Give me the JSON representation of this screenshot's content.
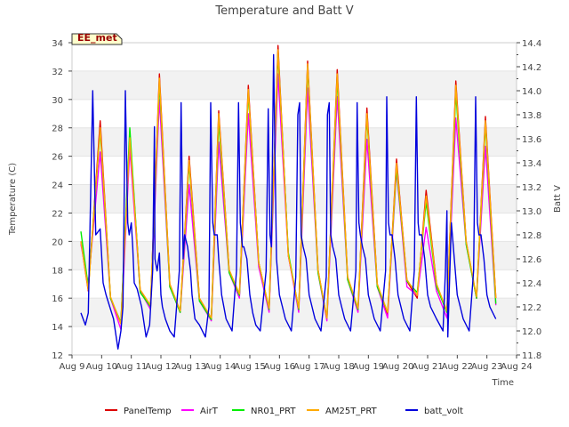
{
  "chart_data": {
    "type": "line",
    "title": "Temperature and Batt V",
    "xlabel": "Time",
    "ylabel": "Temperature (C)",
    "y2label": "Batt V",
    "station_label": "EE_met",
    "xlim": [
      9,
      24
    ],
    "ylim": [
      12,
      34
    ],
    "y2lim": [
      11.8,
      14.4
    ],
    "x_ticks": [
      "Aug 9",
      "Aug 10",
      "Aug 11",
      "Aug 12",
      "Aug 13",
      "Aug 14",
      "Aug 15",
      "Aug 16",
      "Aug 17",
      "Aug 18",
      "Aug 19",
      "Aug 20",
      "Aug 21",
      "Aug 22",
      "Aug 23",
      "Aug 24"
    ],
    "y_ticks": [
      12,
      14,
      16,
      18,
      20,
      22,
      24,
      26,
      28,
      30,
      32,
      34
    ],
    "y2_ticks": [
      11.8,
      12.0,
      12.2,
      12.4,
      12.6,
      12.8,
      13.0,
      13.2,
      13.4,
      13.6,
      13.8,
      14.0,
      14.2,
      14.4
    ],
    "background_bands": true,
    "legend_placement": "bottom",
    "series": [
      {
        "name": "PanelTemp",
        "color": "#dd0000",
        "axis": "left",
        "x": [
          9.3,
          9.55,
          9.95,
          10.3,
          10.65,
          10.95,
          11.3,
          11.65,
          11.95,
          12.3,
          12.65,
          12.95,
          13.3,
          13.7,
          13.95,
          14.3,
          14.65,
          14.95,
          15.3,
          15.65,
          15.95,
          16.3,
          16.65,
          16.95,
          17.3,
          17.6,
          17.95,
          18.3,
          18.65,
          18.95,
          19.3,
          19.65,
          19.95,
          20.3,
          20.65,
          20.95,
          21.3,
          21.65,
          21.95,
          22.3,
          22.65,
          22.95,
          23.3
        ],
        "y": [
          20,
          16.5,
          28.5,
          16,
          14.2,
          27.5,
          16.5,
          15.5,
          31.8,
          17,
          15,
          26,
          16,
          14.5,
          29.2,
          18,
          16.2,
          31,
          18.5,
          15.2,
          33.8,
          19,
          15.2,
          32.7,
          18,
          14.5,
          32.1,
          17.5,
          15.2,
          29.4,
          17,
          14.8,
          25.8,
          17.2,
          16,
          23.6,
          17,
          15,
          31.3,
          20,
          16,
          28.8,
          16
        ]
      },
      {
        "name": "AirT",
        "color": "#ff00ff",
        "axis": "left",
        "x": [
          9.3,
          9.55,
          9.95,
          10.3,
          10.65,
          10.95,
          11.3,
          11.65,
          11.95,
          12.3,
          12.65,
          12.95,
          13.3,
          13.7,
          13.95,
          14.3,
          14.65,
          14.95,
          15.3,
          15.65,
          15.95,
          16.3,
          16.65,
          16.95,
          17.3,
          17.6,
          17.95,
          18.3,
          18.65,
          18.95,
          19.3,
          19.65,
          19.95,
          20.3,
          20.65,
          20.95,
          21.3,
          21.65,
          21.95,
          22.3,
          22.65,
          22.95,
          23.3
        ],
        "y": [
          19.8,
          17,
          26.3,
          16,
          13.8,
          26.5,
          16.5,
          15.2,
          30,
          16.8,
          15,
          24,
          15.8,
          14.4,
          27,
          17.8,
          16,
          29,
          18.2,
          15,
          31.8,
          19,
          15,
          30.8,
          17.8,
          14.4,
          30.2,
          17.3,
          15,
          27.2,
          16.8,
          14.6,
          25,
          16.8,
          16.2,
          21,
          16.5,
          14.6,
          28.7,
          19.8,
          16,
          26.7,
          15.5
        ]
      },
      {
        "name": "NR01_PRT",
        "color": "#00ee00",
        "axis": "left",
        "x": [
          9.3,
          9.55,
          9.95,
          10.3,
          10.65,
          10.95,
          11.3,
          11.65,
          11.95,
          12.3,
          12.65,
          12.95,
          13.3,
          13.7,
          13.95,
          14.3,
          14.65,
          14.95,
          15.3,
          15.65,
          15.95,
          16.3,
          16.65,
          16.95,
          17.3,
          17.6,
          17.95,
          18.3,
          18.65,
          18.95,
          19.3,
          19.65,
          19.95,
          20.3,
          20.65,
          20.95,
          21.3,
          21.65,
          21.95,
          22.3,
          22.65,
          22.95,
          23.3
        ],
        "y": [
          20.7,
          16.8,
          27.8,
          16,
          14.3,
          28,
          16.4,
          15.4,
          31.2,
          16.8,
          15,
          25.5,
          15.8,
          14.5,
          28.5,
          17.8,
          16.2,
          30.5,
          18.5,
          15.2,
          33.3,
          19.2,
          15.2,
          32.3,
          17.8,
          14.6,
          31.5,
          17.3,
          15.2,
          28.8,
          16.8,
          15,
          25.2,
          17.2,
          16.4,
          22.8,
          16.8,
          15,
          30.5,
          19.8,
          16,
          28.3,
          15.6
        ]
      },
      {
        "name": "AM25T_PRT",
        "color": "#ffaa00",
        "axis": "left",
        "x": [
          9.3,
          9.55,
          9.95,
          10.3,
          10.65,
          10.95,
          11.3,
          11.65,
          11.95,
          12.3,
          12.65,
          12.95,
          13.3,
          13.7,
          13.95,
          14.3,
          14.65,
          14.95,
          15.3,
          15.65,
          15.95,
          16.3,
          16.65,
          16.95,
          17.3,
          17.6,
          17.95,
          18.3,
          18.65,
          18.95,
          19.3,
          19.65,
          19.95,
          20.3,
          20.65,
          20.95,
          21.3,
          21.65,
          21.95,
          22.3,
          22.65,
          22.95,
          23.3
        ],
        "y": [
          20,
          16.6,
          28,
          16.1,
          14.2,
          27.3,
          16.6,
          15.5,
          31.5,
          17,
          15.1,
          25.7,
          16,
          14.6,
          29,
          18,
          16.3,
          30.7,
          18.5,
          15.3,
          33.5,
          19,
          15.3,
          32.5,
          18,
          14.6,
          31.8,
          17.5,
          15.3,
          29,
          17,
          15,
          25.5,
          17.3,
          16.2,
          23.2,
          17,
          15.1,
          31,
          20,
          16.1,
          28.5,
          16
        ]
      },
      {
        "name": "batt_volt",
        "color": "#0000dd",
        "axis": "right",
        "x": [
          9.3,
          9.45,
          9.55,
          9.7,
          9.8,
          9.95,
          10.05,
          10.15,
          10.4,
          10.55,
          10.65,
          10.72,
          10.8,
          10.88,
          10.93,
          11.0,
          11.05,
          11.1,
          11.2,
          11.35,
          11.5,
          11.62,
          11.72,
          11.78,
          11.8,
          11.87,
          11.95,
          12.0,
          12.05,
          12.15,
          12.3,
          12.45,
          12.62,
          12.68,
          12.75,
          12.8,
          12.9,
          13.0,
          13.05,
          13.15,
          13.3,
          13.5,
          13.62,
          13.68,
          13.75,
          13.8,
          13.9,
          13.95,
          14.05,
          14.2,
          14.4,
          14.55,
          14.62,
          14.68,
          14.75,
          14.8,
          14.9,
          15.0,
          15.1,
          15.2,
          15.35,
          15.55,
          15.62,
          15.68,
          15.73,
          15.8,
          15.9,
          16.0,
          16.1,
          16.2,
          16.4,
          16.55,
          16.62,
          16.68,
          16.73,
          16.8,
          16.9,
          17.0,
          17.1,
          17.2,
          17.4,
          17.58,
          17.62,
          17.68,
          17.73,
          17.8,
          17.9,
          18.0,
          18.1,
          18.2,
          18.4,
          18.58,
          18.62,
          18.68,
          18.73,
          18.8,
          18.9,
          19.0,
          19.1,
          19.2,
          19.4,
          19.58,
          19.62,
          19.68,
          19.73,
          19.8,
          19.9,
          20.0,
          20.1,
          20.2,
          20.4,
          20.55,
          20.62,
          20.68,
          20.72,
          20.8,
          20.9,
          21.0,
          21.1,
          21.3,
          21.52,
          21.6,
          21.65,
          21.68,
          21.75,
          21.8,
          21.9,
          22.0,
          22.1,
          22.2,
          22.4,
          22.55,
          22.62,
          22.68,
          22.73,
          22.8,
          22.9,
          23.0,
          23.1,
          23.3
        ],
        "y": [
          12.15,
          12.05,
          12.15,
          14.0,
          12.8,
          12.85,
          12.4,
          12.3,
          12.1,
          11.85,
          12.0,
          12.2,
          14.0,
          12.9,
          12.8,
          12.9,
          12.7,
          12.4,
          12.35,
          12.2,
          11.95,
          12.05,
          12.5,
          13.7,
          12.6,
          12.5,
          12.65,
          12.3,
          12.2,
          12.1,
          12.0,
          11.95,
          12.5,
          13.9,
          12.6,
          12.8,
          12.7,
          12.5,
          12.3,
          12.1,
          12.05,
          11.95,
          12.2,
          13.9,
          12.9,
          12.8,
          12.8,
          12.6,
          12.3,
          12.1,
          12.0,
          12.5,
          13.9,
          12.9,
          12.7,
          12.7,
          12.6,
          12.3,
          12.15,
          12.05,
          12.0,
          12.5,
          13.85,
          12.8,
          12.7,
          14.3,
          12.6,
          12.3,
          12.2,
          12.1,
          12.0,
          12.45,
          13.8,
          13.9,
          12.8,
          12.7,
          12.6,
          12.3,
          12.2,
          12.1,
          12.0,
          12.45,
          13.8,
          13.9,
          12.8,
          12.7,
          12.6,
          12.3,
          12.2,
          12.1,
          12.0,
          12.5,
          13.9,
          12.9,
          12.8,
          12.7,
          12.6,
          12.3,
          12.2,
          12.1,
          12.0,
          12.5,
          13.95,
          12.9,
          12.8,
          12.8,
          12.6,
          12.3,
          12.2,
          12.1,
          12.0,
          12.5,
          13.95,
          12.9,
          12.8,
          12.8,
          12.6,
          12.3,
          12.2,
          12.1,
          12.0,
          12.5,
          13.0,
          11.95,
          12.5,
          12.9,
          12.6,
          12.3,
          12.2,
          12.1,
          12.0,
          12.5,
          13.95,
          12.9,
          12.8,
          12.8,
          12.6,
          12.3,
          12.2,
          12.1
        ]
      }
    ]
  }
}
